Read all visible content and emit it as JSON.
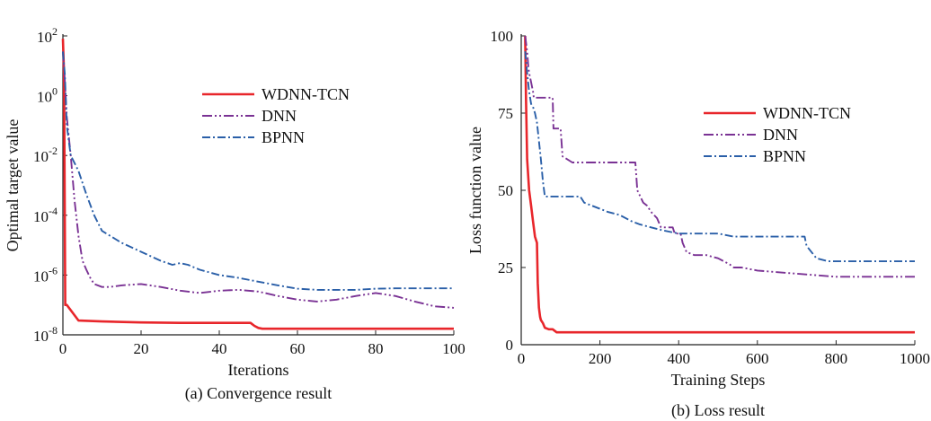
{
  "chart_data": [
    {
      "type": "line",
      "caption": "(a) Convergence result",
      "xlabel": "Iterations",
      "ylabel": "Optimal target value",
      "xlim": [
        0,
        100
      ],
      "ylim": [
        1e-08,
        100
      ],
      "y_scale": "log",
      "x_ticks": [
        "0",
        "20",
        "40",
        "60",
        "80",
        "100"
      ],
      "y_ticks": [
        {
          "base": "10",
          "exp": "2"
        },
        {
          "base": "10",
          "exp": "0"
        },
        {
          "base": "10",
          "exp": "-2"
        },
        {
          "base": "10",
          "exp": "-4"
        },
        {
          "base": "10",
          "exp": "-6"
        },
        {
          "base": "10",
          "exp": "-8"
        }
      ],
      "legend_position": "upper-right",
      "series": [
        {
          "name": "WDNN-TCN",
          "color": "#e8262b",
          "dash": "solid",
          "x": [
            0,
            0.3,
            0.6,
            1,
            4,
            10,
            20,
            30,
            40,
            48,
            49,
            50,
            51,
            60,
            70,
            80,
            90,
            100
          ],
          "y": [
            80,
            5,
            1e-07,
            1e-07,
            3e-08,
            2.8e-08,
            2.6e-08,
            2.5e-08,
            2.5e-08,
            2.5e-08,
            2e-08,
            1.7e-08,
            1.6e-08,
            1.6e-08,
            1.6e-08,
            1.6e-08,
            1.6e-08,
            1.6e-08
          ]
        },
        {
          "name": "DNN",
          "color": "#7a3294",
          "dash": "dashdot2",
          "x": [
            0,
            0.5,
            1,
            2,
            3,
            4,
            5,
            6,
            7,
            8,
            10,
            12,
            15,
            20,
            25,
            30,
            35,
            40,
            45,
            50,
            55,
            60,
            65,
            70,
            75,
            80,
            85,
            90,
            95,
            100
          ],
          "y": [
            30,
            3,
            0.2,
            0.01,
            0.0003,
            2e-05,
            3e-06,
            1.5e-06,
            8e-07,
            5e-07,
            4e-07,
            4e-07,
            4.5e-07,
            5e-07,
            4e-07,
            3e-07,
            2.5e-07,
            3e-07,
            3.2e-07,
            2.8e-07,
            2e-07,
            1.5e-07,
            1.3e-07,
            1.5e-07,
            2e-07,
            2.5e-07,
            2e-07,
            1.3e-07,
            9e-08,
            8e-08
          ]
        },
        {
          "name": "BPNN",
          "color": "#2a5fa8",
          "dash": "dashdot",
          "x": [
            0,
            0.5,
            1,
            2,
            4,
            6,
            8,
            10,
            15,
            20,
            25,
            28,
            30,
            32,
            35,
            40,
            45,
            50,
            55,
            60,
            65,
            70,
            75,
            80,
            85,
            90,
            95,
            100
          ],
          "y": [
            30,
            5,
            0.1,
            0.01,
            0.003,
            0.0005,
            0.0001,
            3e-05,
            1.2e-05,
            6e-06,
            3e-06,
            2.2e-06,
            2.5e-06,
            2.2e-06,
            1.5e-06,
            1e-06,
            8e-07,
            6e-07,
            4.5e-07,
            3.5e-07,
            3.2e-07,
            3.2e-07,
            3.2e-07,
            3.5e-07,
            3.6e-07,
            3.6e-07,
            3.6e-07,
            3.6e-07
          ]
        }
      ]
    },
    {
      "type": "line",
      "caption": "(b) Loss result",
      "xlabel": "Training Steps",
      "ylabel": "Loss function value",
      "xlim": [
        0,
        1000
      ],
      "ylim": [
        0,
        100
      ],
      "x_ticks": [
        "0",
        "200",
        "400",
        "600",
        "800",
        "1000"
      ],
      "y_ticks": [
        "0",
        "25",
        "50",
        "75",
        "100"
      ],
      "legend_position": "right",
      "series": [
        {
          "name": "WDNN-TCN",
          "color": "#e8262b",
          "dash": "solid",
          "x": [
            10,
            12,
            15,
            20,
            25,
            30,
            35,
            40,
            42,
            45,
            48,
            50,
            55,
            60,
            70,
            80,
            90,
            100,
            200,
            400,
            600,
            800,
            1000
          ],
          "y": [
            100,
            80,
            60,
            50,
            45,
            40,
            35,
            33,
            20,
            12,
            9,
            8,
            7,
            5.5,
            5,
            5,
            4,
            4,
            4,
            4,
            4,
            4,
            4
          ]
        },
        {
          "name": "DNN",
          "color": "#7a3294",
          "dash": "dashdot2",
          "x": [
            10,
            15,
            18,
            20,
            25,
            30,
            32,
            50,
            80,
            82,
            100,
            105,
            130,
            290,
            295,
            310,
            320,
            330,
            345,
            355,
            385,
            390,
            405,
            410,
            420,
            440,
            470,
            500,
            530,
            540,
            560,
            600,
            700,
            800,
            1000
          ],
          "y": [
            100,
            95,
            90,
            88,
            85,
            82,
            80,
            80,
            80,
            70,
            70,
            61,
            59,
            59,
            50,
            46,
            45,
            43,
            41,
            38,
            38,
            36,
            36,
            33,
            30,
            29,
            29,
            28,
            26,
            25,
            25,
            24,
            23,
            22,
            22
          ]
        },
        {
          "name": "BPNN",
          "color": "#2a5fa8",
          "dash": "dashdot",
          "x": [
            10,
            15,
            20,
            25,
            30,
            35,
            40,
            50,
            55,
            60,
            100,
            150,
            160,
            200,
            220,
            250,
            280,
            300,
            330,
            360,
            400,
            500,
            540,
            560,
            600,
            700,
            720,
            725,
            750,
            780,
            800,
            1000
          ],
          "y": [
            95,
            88,
            82,
            78,
            77,
            75,
            72,
            60,
            53,
            48,
            48,
            48,
            46,
            44,
            43,
            42,
            40,
            39,
            38,
            37,
            36,
            36,
            35,
            35,
            35,
            35,
            35,
            32,
            28,
            27,
            27,
            27
          ]
        }
      ]
    }
  ]
}
